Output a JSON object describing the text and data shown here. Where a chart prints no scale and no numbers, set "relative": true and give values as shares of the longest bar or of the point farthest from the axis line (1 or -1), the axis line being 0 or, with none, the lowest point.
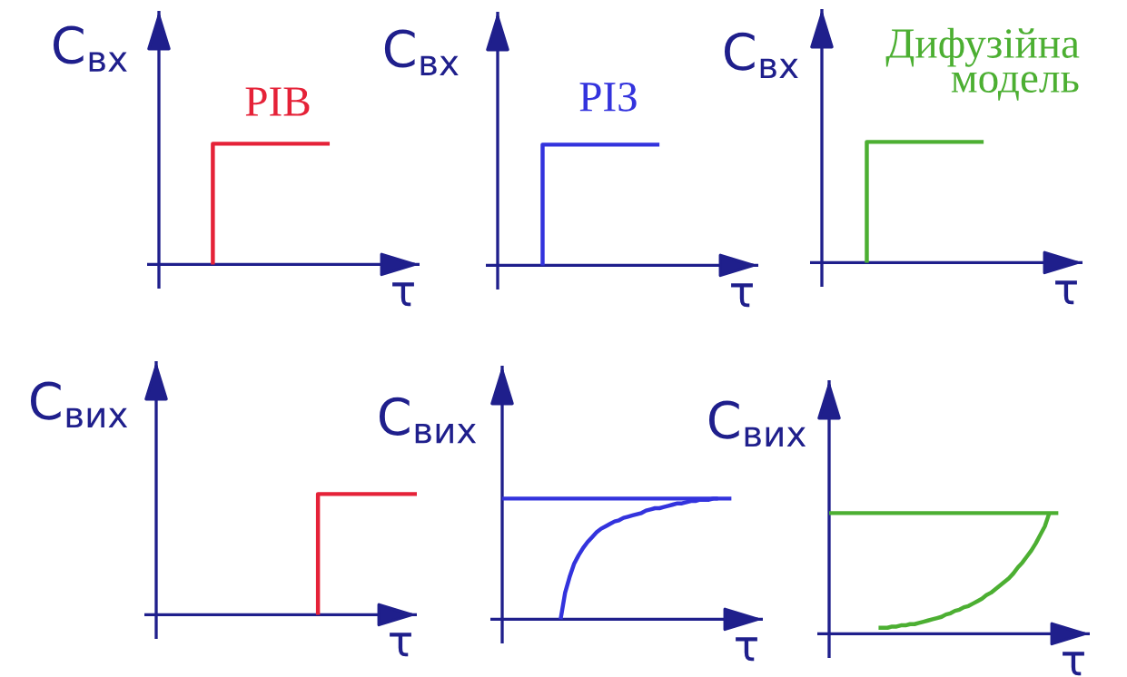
{
  "chart_data": [
    {
      "type": "step",
      "ylabel": "C$_{вх}$",
      "xlabel": "τ",
      "relative": true,
      "categories": [
        null,
        null,
        null,
        null,
        null,
        null,
        null,
        null,
        null,
        null,
        null,
        null,
        null,
        null,
        null,
        null,
        null,
        null,
        null,
        null,
        null,
        null,
        null,
        null,
        null,
        null,
        null,
        null,
        null,
        null
      ],
      "series": [
        {
          "name": "РІВ",
          "color": "#e52238",
          "values": [
            null,
            null,
            null,
            null,
            null,
            null,
            0,
            1,
            1,
            1,
            1,
            1,
            1,
            1,
            1,
            1,
            1,
            1,
            1,
            1,
            null,
            null,
            null,
            null,
            null,
            null,
            null,
            null,
            null,
            null
          ]
        }
      ]
    },
    {
      "type": "step",
      "ylabel": "C$_{вх}$",
      "xlabel": "τ",
      "relative": true,
      "categories": [
        null,
        null,
        null,
        null,
        null,
        null,
        null,
        null,
        null,
        null,
        null,
        null,
        null,
        null,
        null,
        null,
        null,
        null,
        null,
        null,
        null,
        null,
        null,
        null,
        null,
        null,
        null,
        null,
        null,
        null
      ],
      "series": [
        {
          "name": "РІЗ",
          "color": "#3333dd",
          "values": [
            null,
            null,
            null,
            null,
            null,
            0,
            1,
            1,
            1,
            1,
            1,
            1,
            1,
            1,
            1,
            1,
            1,
            1,
            1,
            null,
            null,
            null,
            null,
            null,
            null,
            null,
            null,
            null,
            null,
            null
          ]
        }
      ]
    },
    {
      "type": "step",
      "ylabel": "C$_{вх}$",
      "xlabel": "τ",
      "relative": true,
      "categories": [
        null,
        null,
        null,
        null,
        null,
        null,
        null,
        null,
        null,
        null,
        null,
        null,
        null,
        null,
        null,
        null,
        null,
        null,
        null,
        null,
        null,
        null,
        null,
        null,
        null,
        null,
        null,
        null,
        null,
        null
      ],
      "series": [
        {
          "name": "Дифузійна\nмодель",
          "color": "#4caf32",
          "values": [
            null,
            null,
            null,
            null,
            null,
            0,
            1,
            1,
            1,
            1,
            1,
            1,
            1,
            1,
            1,
            1,
            1,
            1,
            1,
            null,
            null,
            null,
            null,
            null,
            null,
            null,
            null,
            null,
            null,
            null
          ]
        }
      ]
    },
    {
      "type": "step",
      "ylabel": "C$_{вих}$",
      "xlabel": "τ",
      "relative": true,
      "categories": [
        null,
        null,
        null,
        null,
        null,
        null,
        null,
        null,
        null,
        null,
        null,
        null,
        null,
        null,
        null,
        null,
        null,
        null,
        null,
        null,
        null,
        null,
        null,
        null,
        null,
        null,
        null,
        null,
        null,
        null
      ],
      "series": [
        {
          "color": "#e52238",
          "values": [
            null,
            null,
            null,
            null,
            null,
            null,
            null,
            null,
            null,
            null,
            null,
            null,
            null,
            null,
            null,
            null,
            null,
            null,
            0,
            1,
            1,
            1,
            1,
            1,
            1,
            1,
            1,
            1,
            1,
            1
          ]
        }
      ]
    },
    {
      "type": "line",
      "ylabel": "C$_{вих}$",
      "xlabel": "τ",
      "relative": true,
      "categories": [
        null,
        null,
        null,
        null,
        null,
        null,
        null,
        null,
        null,
        null,
        null,
        null,
        null,
        null,
        null,
        null,
        null,
        null,
        null,
        null,
        null,
        null,
        null,
        null,
        null,
        null,
        null,
        null,
        null,
        null,
        null,
        null,
        null,
        null,
        null,
        null,
        null,
        null,
        null,
        null,
        null,
        null,
        null,
        null,
        null,
        null,
        null,
        null,
        null,
        null,
        null,
        null,
        null,
        null,
        null,
        null,
        null,
        null,
        null
      ],
      "series": [
        {
          "color": "#3333dd",
          "values": [
            1,
            1,
            1,
            1,
            1,
            1,
            1,
            1,
            1,
            1,
            1,
            1,
            1,
            1,
            1,
            1,
            1,
            1,
            1,
            1,
            1,
            1,
            1,
            1,
            1,
            1,
            1,
            1,
            1,
            1,
            1,
            1,
            1,
            1,
            1,
            1,
            1,
            1,
            1,
            1,
            1,
            1,
            1,
            1,
            1,
            1,
            1,
            1,
            1,
            1,
            1,
            1,
            null,
            null,
            null,
            null,
            null,
            null,
            null
          ]
        },
        {
          "color": "#3333dd",
          "values": [
            null,
            null,
            null,
            null,
            null,
            null,
            null,
            null,
            null,
            null,
            null,
            null,
            null,
            0,
            0.22,
            0.35,
            0.46,
            0.53,
            0.59,
            0.64,
            0.68,
            0.72,
            0.75,
            0.77,
            0.79,
            0.81,
            0.82,
            0.84,
            0.85,
            0.86,
            0.87,
            0.88,
            0.9,
            0.91,
            0.92,
            0.92,
            0.93,
            0.94,
            0.95,
            0.96,
            0.96,
            0.97,
            0.98,
            0.98,
            0.99,
            0.99,
            0.99,
            1.0,
            1.0,
            null,
            null,
            null,
            null,
            null,
            null,
            null,
            null,
            null,
            null
          ]
        }
      ]
    },
    {
      "type": "line",
      "ylabel": "C$_{вих}$",
      "xlabel": "τ",
      "relative": true,
      "categories": [
        null,
        null,
        null,
        null,
        null,
        null,
        null,
        null,
        null,
        null,
        null,
        null,
        null,
        null,
        null,
        null,
        null,
        null,
        null,
        null,
        null,
        null,
        null,
        null,
        null,
        null,
        null,
        null,
        null,
        null,
        null,
        null,
        null,
        null,
        null,
        null,
        null,
        null,
        null,
        null,
        null,
        null,
        null,
        null,
        null,
        null,
        null,
        null,
        null,
        null,
        null,
        null,
        null,
        null,
        null,
        null,
        null,
        null,
        null
      ],
      "series": [
        {
          "color": "#4caf32",
          "values": [
            1,
            1,
            1,
            1,
            1,
            1,
            1,
            1,
            1,
            1,
            1,
            1,
            1,
            1,
            1,
            1,
            1,
            1,
            1,
            1,
            1,
            1,
            1,
            1,
            1,
            1,
            1,
            1,
            1,
            1,
            1,
            1,
            1,
            1,
            1,
            1,
            1,
            1,
            1,
            1,
            1,
            1,
            1,
            1,
            1,
            1,
            1,
            1,
            1,
            1,
            1,
            1,
            null,
            null,
            null,
            null,
            null,
            null,
            null
          ]
        },
        {
          "color": "#4caf32",
          "values": [
            null,
            null,
            null,
            null,
            null,
            null,
            null,
            null,
            null,
            null,
            null,
            0.05,
            0.05,
            0.05,
            0.06,
            0.06,
            0.07,
            0.07,
            0.08,
            0.08,
            0.09,
            0.1,
            0.11,
            0.12,
            0.13,
            0.14,
            0.16,
            0.17,
            0.19,
            0.2,
            0.22,
            0.23,
            0.25,
            0.27,
            0.29,
            0.32,
            0.34,
            0.37,
            0.4,
            0.43,
            0.46,
            0.5,
            0.55,
            0.59,
            0.64,
            0.69,
            0.75,
            0.82,
            0.89,
            1.0,
            null,
            null,
            null,
            null,
            null,
            null,
            null,
            null,
            null
          ]
        }
      ]
    }
  ]
}
